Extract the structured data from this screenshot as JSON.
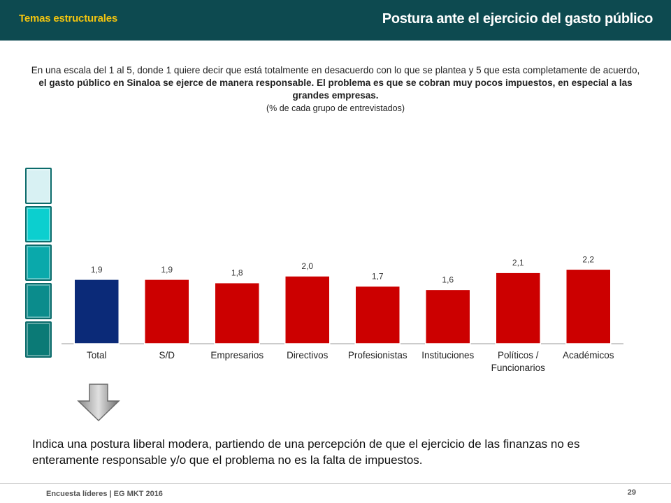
{
  "header": {
    "section": "Temas estructurales",
    "title": "Postura ante el ejercicio del gasto público"
  },
  "question": {
    "part1": "En una escala del 1 al 5, donde 1 quiere decir que está totalmente en desacuerdo con lo que se plantea y 5 que esta completamente de acuerdo, ",
    "bold": "el gasto público en Sinaloa se ejerce de manera responsable. El problema es que se cobran muy pocos impuestos, en especial a las grandes empresas.",
    "sub": "(% de cada grupo de entrevistados)"
  },
  "scale": {
    "colors": [
      "#d8f1f3",
      "#0ccfcf",
      "#0aa9ab",
      "#0b8c8c",
      "#0b7a76"
    ]
  },
  "chart_data": {
    "type": "bar",
    "categories": [
      "Total",
      "S/D",
      "Empresarios",
      "Directivos",
      "Profesionistas",
      "Instituciones",
      "Políticos / Funcionarios",
      "Académicos"
    ],
    "category_lines": [
      [
        "Total"
      ],
      [
        "S/D"
      ],
      [
        "Empresarios"
      ],
      [
        "Directivos"
      ],
      [
        "Profesionistas"
      ],
      [
        "Instituciones"
      ],
      [
        "Políticos /",
        "Funcionarios"
      ],
      [
        "Académicos"
      ]
    ],
    "values": [
      1.9,
      1.9,
      1.8,
      2.0,
      1.7,
      1.6,
      2.1,
      2.2
    ],
    "labels": [
      "1,9",
      "1,9",
      "1,8",
      "2,0",
      "1,7",
      "1,6",
      "2,1",
      "2,2"
    ],
    "colors": [
      "#0b2a78",
      "#cc0000",
      "#cc0000",
      "#cc0000",
      "#cc0000",
      "#cc0000",
      "#cc0000",
      "#cc0000"
    ],
    "ylim": [
      0,
      5
    ],
    "grid": false
  },
  "conclusion": "Indica una postura liberal modera, partiendo de una percepción de que el ejercicio de las finanzas no es enteramente responsable y/o que el problema no es la falta de impuestos.",
  "footer": {
    "source": "Encuesta líderes | EG MKT 2016",
    "page": "29"
  }
}
